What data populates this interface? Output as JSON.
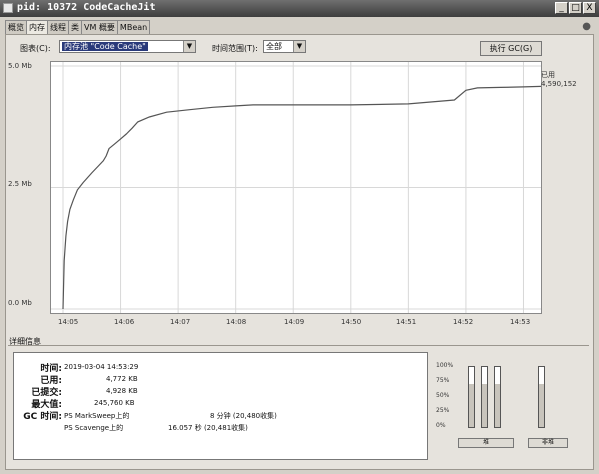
{
  "window": {
    "title": "pid: 10372 CodeCacheJit",
    "minimize": "_",
    "restore": "□",
    "close": "X"
  },
  "tabs": [
    {
      "label": "概览"
    },
    {
      "label": "内存",
      "active": true
    },
    {
      "label": "线程"
    },
    {
      "label": "类"
    },
    {
      "label": "VM 概要"
    },
    {
      "label": "MBean"
    }
  ],
  "toolbar": {
    "chart_label": "图表(C):",
    "chart_value": "内存池 \"Code Cache\"",
    "range_label": "时间范围(T):",
    "range_value": "全部",
    "gc_button": "执行 GC(G)"
  },
  "chart_data": {
    "type": "line",
    "ytick_labels": [
      "5.0 Mb",
      "2.5 Mb",
      "0.0 Mb"
    ],
    "ylim": [
      0,
      5.0
    ],
    "xtick_labels": [
      "14:05",
      "14:06",
      "14:07",
      "14:08",
      "14:09",
      "14:50",
      "14:51",
      "14:52",
      "14:53"
    ],
    "grid": true,
    "legend_text": [
      "已用",
      "4,590,152"
    ],
    "series": [
      {
        "values_x": [
          0,
          0.02,
          0.05,
          0.08,
          0.12,
          0.18,
          0.25,
          0.35,
          0.5,
          0.62,
          0.7,
          0.75,
          0.8,
          0.9,
          1.0,
          1.1,
          1.2,
          1.3,
          1.5,
          1.8,
          2.2,
          2.6,
          3.0,
          3.3,
          3.6,
          3.65,
          3.8,
          4.0,
          5.0,
          6.0,
          6.8,
          7.0,
          7.2,
          7.6,
          8.0,
          8.6
        ],
        "values_y": [
          0.0,
          1.0,
          1.5,
          1.8,
          2.05,
          2.25,
          2.45,
          2.6,
          2.8,
          2.95,
          3.05,
          3.15,
          3.3,
          3.4,
          3.5,
          3.6,
          3.72,
          3.85,
          3.95,
          4.05,
          4.1,
          4.15,
          4.18,
          4.2,
          4.2,
          4.2,
          4.2,
          4.2,
          4.2,
          4.22,
          4.3,
          4.5,
          4.55,
          4.56,
          4.57,
          4.59
        ]
      }
    ]
  },
  "details": {
    "section_title": "详细信息",
    "labels": [
      "时间:",
      "已用:",
      "已提交:",
      "最大值:",
      "GC 时间:"
    ],
    "time": "2019-03-04 14:53:29",
    "used": "4,772 KB",
    "committed": "4,928 KB",
    "max": "245,760 KB",
    "gc": [
      {
        "name": "PS MarkSweep上的",
        "time": "8 分钟 (20,480收集)"
      },
      {
        "name": "PS Scavenge上的",
        "time": "16.057 秒 (20,481收集)"
      }
    ]
  },
  "gauges": {
    "scale": [
      "100%",
      "75%",
      "50%",
      "25%",
      "0%"
    ],
    "heap_button": "堆",
    "nonheap_button": "非堆",
    "heap_levels": [
      0.72,
      0.72,
      0.72
    ],
    "nonheap_levels": [
      0.72
    ]
  }
}
